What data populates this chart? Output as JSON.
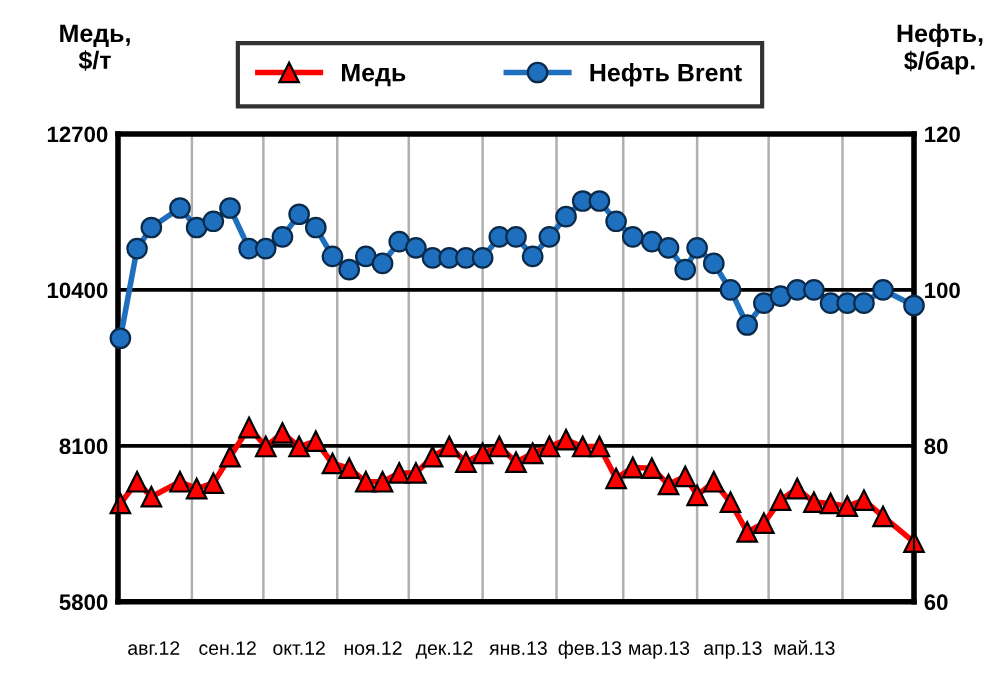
{
  "chart_data": {
    "type": "line",
    "ylabel": "Медь,\n$/т",
    "y2label": "Нефть,\n$/бар.",
    "x": [
      "2012-08-02",
      "2012-08-09",
      "2012-08-15",
      "2012-08-27",
      "2012-09-03",
      "2012-09-10",
      "2012-09-17",
      "2012-09-25",
      "2012-10-02",
      "2012-10-09",
      "2012-10-16",
      "2012-10-23",
      "2012-10-30",
      "2012-11-06",
      "2012-11-13",
      "2012-11-20",
      "2012-11-27",
      "2012-12-04",
      "2012-12-11",
      "2012-12-18",
      "2012-12-25",
      "2013-01-01",
      "2013-01-08",
      "2013-01-15",
      "2013-01-22",
      "2013-01-29",
      "2013-02-05",
      "2013-02-12",
      "2013-02-19",
      "2013-02-26",
      "2013-03-05",
      "2013-03-13",
      "2013-03-20",
      "2013-03-27",
      "2013-04-01",
      "2013-04-08",
      "2013-04-15",
      "2013-04-22",
      "2013-04-29",
      "2013-05-06",
      "2013-05-13",
      "2013-05-20",
      "2013-05-27",
      "2013-06-03",
      "2013-06-10",
      "2013-06-18",
      "2013-07-01"
    ],
    "xlim": [
      "2012-08-01",
      "2013-07-01"
    ],
    "xticks": [
      {
        "value": "2012-08-16",
        "label": "авг.12"
      },
      {
        "value": "2012-09-01",
        "label": null
      },
      {
        "value": "2012-09-16",
        "label": "сен.12"
      },
      {
        "value": "2012-10-01",
        "label": null
      },
      {
        "value": "2012-10-16",
        "label": "окт.12"
      },
      {
        "value": "2012-11-01",
        "label": null
      },
      {
        "value": "2012-11-16",
        "label": "ноя.12"
      },
      {
        "value": "2012-12-01",
        "label": null
      },
      {
        "value": "2012-12-16",
        "label": "дек.12"
      },
      {
        "value": "2013-01-01",
        "label": null
      },
      {
        "value": "2013-01-16",
        "label": "янв.13"
      },
      {
        "value": "2013-02-01",
        "label": null
      },
      {
        "value": "2013-02-15",
        "label": "фев.13"
      },
      {
        "value": "2013-03-01",
        "label": null
      },
      {
        "value": "2013-03-16",
        "label": "мар.13"
      },
      {
        "value": "2013-04-01",
        "label": null
      },
      {
        "value": "2013-04-16",
        "label": "апр.13"
      },
      {
        "value": "2013-05-01",
        "label": null
      },
      {
        "value": "2013-05-16",
        "label": "май.13"
      },
      {
        "value": "2013-06-01",
        "label": null
      }
    ],
    "ylim": [
      5800,
      12700
    ],
    "yticks": [
      5800,
      8100,
      10400,
      12700
    ],
    "y2lim": [
      60,
      120
    ],
    "y2ticks": [
      60,
      80,
      100,
      120
    ],
    "grid": true,
    "legend": "top",
    "line_style": "solid",
    "series": [
      {
        "name": "Медь",
        "color": "#ff0000",
        "marker": "triangle",
        "values": [
          7250,
          7570,
          7350,
          7570,
          7470,
          7550,
          7940,
          8370,
          8090,
          8290,
          8090,
          8170,
          7840,
          7770,
          7570,
          7570,
          7700,
          7700,
          7940,
          8090,
          7860,
          7990,
          8090,
          7860,
          7990,
          8090,
          8190,
          8090,
          8090,
          7620,
          7780,
          7770,
          7530,
          7650,
          7370,
          7570,
          7270,
          6830,
          6960,
          7300,
          7470,
          7270,
          7250,
          7210,
          7300,
          7060,
          6680
        ]
      },
      {
        "name": "Нефть Brent",
        "color": "#1f6fbf",
        "marker": "circle",
        "axis": "y2",
        "values": [
          93.8,
          105.3,
          108.0,
          110.5,
          108.0,
          108.8,
          110.5,
          105.3,
          105.3,
          106.8,
          109.7,
          108.0,
          104.3,
          102.6,
          104.3,
          103.4,
          106.2,
          105.4,
          104.1,
          104.1,
          104.1,
          104.1,
          106.8,
          106.8,
          104.3,
          106.8,
          109.4,
          111.4,
          111.4,
          108.8,
          106.8,
          106.2,
          105.4,
          102.6,
          105.4,
          103.4,
          100.0,
          95.5,
          98.3,
          99.2,
          100.0,
          100.0,
          98.3,
          98.3,
          98.3,
          100.0,
          98.0
        ]
      }
    ]
  }
}
